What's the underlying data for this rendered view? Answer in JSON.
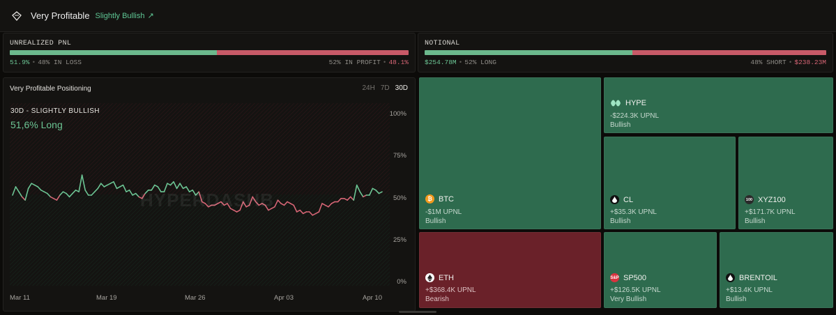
{
  "header": {
    "title": "Very Profitable",
    "sentiment": "Slightly Bullish",
    "sentiment_arrow": "↗"
  },
  "pnl": {
    "label": "UNREALIZED PNL",
    "green_fraction": 0.519,
    "left_pct": "51.9%",
    "left_text": "48% IN LOSS",
    "right_text": "52% IN PROFIT",
    "right_pct": "48.1%"
  },
  "notional": {
    "label": "NOTIONAL",
    "green_fraction": 0.517,
    "left_value": "$254.78M",
    "left_text": "52% LONG",
    "right_text": "48% SHORT",
    "right_value": "$238.23M"
  },
  "positioning": {
    "title": "Very Profitable Positioning",
    "timeframes": [
      "24H",
      "7D",
      "30D"
    ],
    "active_timeframe": "30D",
    "subtitle": "30D - SLIGHTLY BULLISH",
    "headline": "51,6% Long",
    "watermark": "HYPERDASHB"
  },
  "chart_data": {
    "type": "line",
    "title": "30D - SLIGHTLY BULLISH",
    "ylim": [
      0,
      100
    ],
    "yticks": [
      "100%",
      "75%",
      "50%",
      "25%",
      "0%"
    ],
    "xticks": [
      "Mar 11",
      "Mar 19",
      "Mar 26",
      "Apr 03",
      "Apr 10"
    ],
    "threshold": 50,
    "colors": {
      "above": "#6cc594",
      "below": "#d66575"
    },
    "series": [
      {
        "values": [
          50,
          55,
          52,
          49,
          47,
          54,
          57,
          56,
          55,
          53,
          52,
          51,
          49,
          48,
          47,
          50,
          52,
          51,
          49,
          51,
          53,
          52,
          62,
          53,
          50,
          50,
          52,
          54,
          57,
          55,
          56,
          57,
          58,
          54,
          55,
          56,
          52,
          53,
          50,
          51,
          49,
          48,
          51,
          53,
          53,
          56,
          55,
          52,
          52,
          57,
          56,
          58,
          54,
          57,
          54,
          55,
          52,
          53,
          50,
          52,
          46,
          45,
          43,
          44,
          44,
          45,
          46,
          44,
          45,
          42,
          41,
          40,
          41,
          46,
          43,
          44,
          49,
          46,
          44,
          45,
          44,
          41,
          42,
          43,
          47,
          45,
          44,
          46,
          45,
          44,
          40,
          41,
          39,
          40,
          40,
          38,
          39,
          40,
          45,
          44,
          43,
          45,
          46,
          46,
          48,
          48,
          47,
          49,
          47,
          56,
          52,
          49,
          50,
          50,
          54,
          53,
          51,
          52
        ]
      }
    ]
  },
  "treemap": [
    {
      "symbol": "BTC",
      "icon": "bitcoin-icon",
      "upnl": "-$1M UPNL",
      "sentiment": "Bullish",
      "tone": "green"
    },
    {
      "symbol": "HYPE",
      "icon": "hype-icon",
      "upnl": "-$224.3K UPNL",
      "sentiment": "Bullish",
      "tone": "green"
    },
    {
      "symbol": "CL",
      "icon": "oil-drop-icon",
      "upnl": "+$35.3K UPNL",
      "sentiment": "Bullish",
      "tone": "green"
    },
    {
      "symbol": "XYZ100",
      "icon": "xyz100-icon",
      "upnl": "+$171.7K UPNL",
      "sentiment": "Bullish",
      "tone": "green"
    },
    {
      "symbol": "ETH",
      "icon": "ethereum-icon",
      "upnl": "+$368.4K UPNL",
      "sentiment": "Bearish",
      "tone": "red"
    },
    {
      "symbol": "SP500",
      "icon": "sp500-icon",
      "upnl": "+$126.5K UPNL",
      "sentiment": "Very Bullish",
      "tone": "green"
    },
    {
      "symbol": "BRENTOIL",
      "icon": "oil-drop-icon",
      "upnl": "+$13.4K UPNL",
      "sentiment": "Bullish",
      "tone": "green"
    }
  ],
  "icon_text": {
    "sp500": "S&P",
    "xyz100": "100"
  }
}
